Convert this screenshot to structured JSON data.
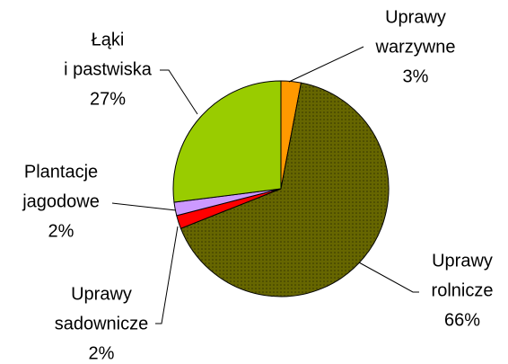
{
  "chart_data": {
    "type": "pie",
    "categories": [
      "Uprawy\nwarzywne",
      "Uprawy\nrolnicze",
      "Uprawy\nsadownicze",
      "Plantacje\njagodowe",
      "Łąki\ni pastwiska"
    ],
    "values": [
      3,
      66,
      2,
      2,
      27
    ],
    "value_labels": [
      "3%",
      "66%",
      "2%",
      "2%",
      "27%"
    ],
    "colors": [
      "#ff9900",
      "#666600",
      "#ff0000",
      "#cc99ff",
      "#99cc00"
    ]
  }
}
